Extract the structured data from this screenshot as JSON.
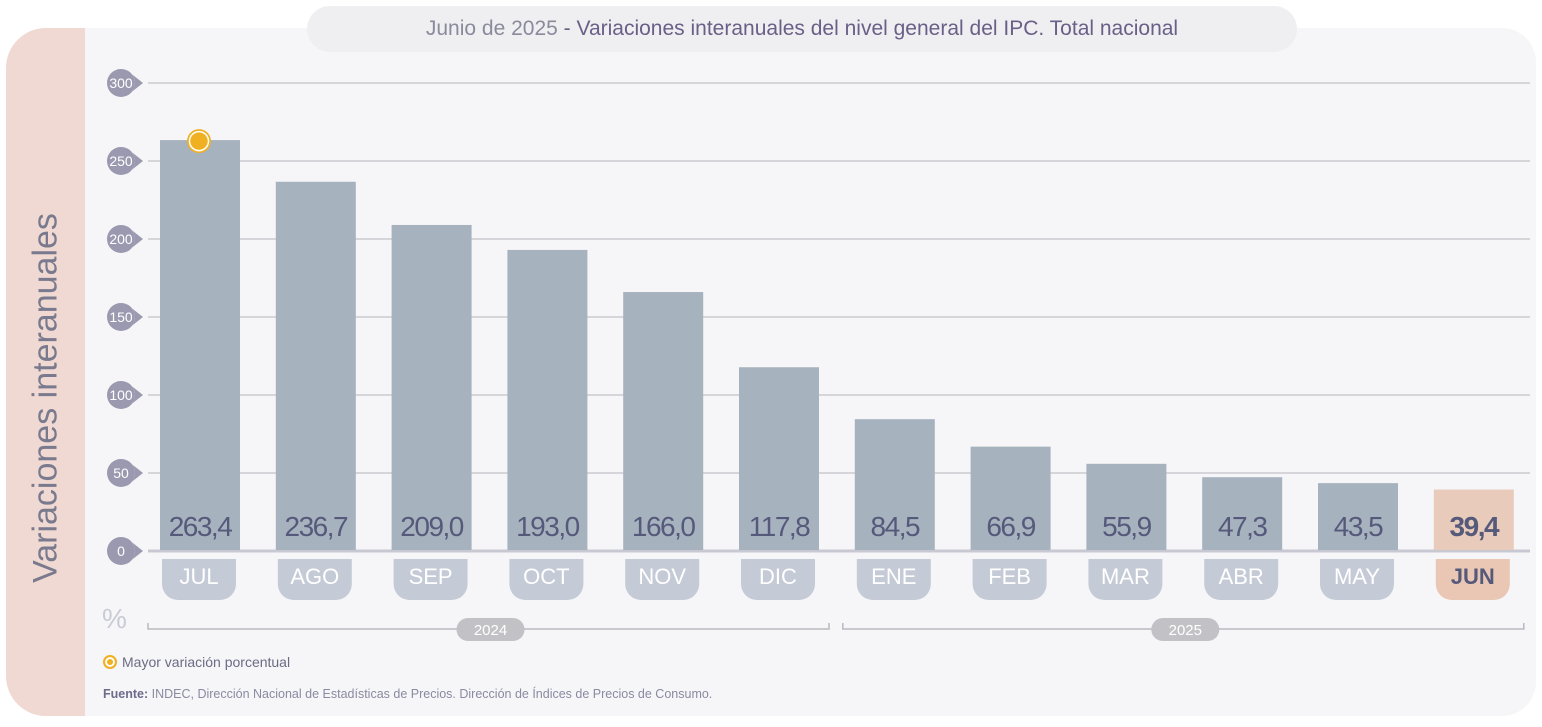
{
  "title": {
    "prefix": "Junio de 2025",
    "separator": " - ",
    "main": "Variaciones interanuales del nivel general del IPC. Total nacional"
  },
  "side_label": "Variaciones interanuales",
  "unit_label": "%",
  "legend": {
    "marker_label": "Mayor variación porcentual"
  },
  "source": {
    "label": "Fuente:",
    "text": " INDEC, Dirección Nacional de Estadísticas de Precios. Dirección de Índices de Precios de Consumo."
  },
  "colors": {
    "bar": "#a7b2bf",
    "bar_highlight": "#e8cbbb",
    "month_pill": "#c5cbd6",
    "month_pill_highlight": "#eac7b5",
    "tick_bubble": "#9a99b0",
    "grid": "#b4b4bc",
    "value_text": "#55597a",
    "marker": "#efb122",
    "year_pill": "#c2c1c6"
  },
  "chart_data": {
    "type": "bar",
    "title": "Junio de 2025 - Variaciones interanuales del nivel general del IPC. Total nacional",
    "xlabel": "",
    "ylabel": "Variaciones interanuales (%)",
    "categories": [
      "JUL",
      "AGO",
      "SEP",
      "OCT",
      "NOV",
      "DIC",
      "ENE",
      "FEB",
      "MAR",
      "ABR",
      "MAY",
      "JUN"
    ],
    "values": [
      263.4,
      236.7,
      209.0,
      193.0,
      166.0,
      117.8,
      84.5,
      66.9,
      55.9,
      47.3,
      43.5,
      39.4
    ],
    "value_labels": [
      "263,4",
      "236,7",
      "209,0",
      "193,0",
      "166,0",
      "117,8",
      "84,5",
      "66,9",
      "55,9",
      "47,3",
      "43,5",
      "39,4"
    ],
    "highlight_index": 11,
    "max_marker_index": 0,
    "ylim": [
      0,
      300
    ],
    "yticks": [
      0,
      50,
      100,
      150,
      200,
      250,
      300
    ],
    "grid": true,
    "year_groups": [
      {
        "label": "2024",
        "start": 0,
        "end": 5
      },
      {
        "label": "2025",
        "start": 6,
        "end": 11
      }
    ],
    "legend_position": "bottom-left"
  }
}
